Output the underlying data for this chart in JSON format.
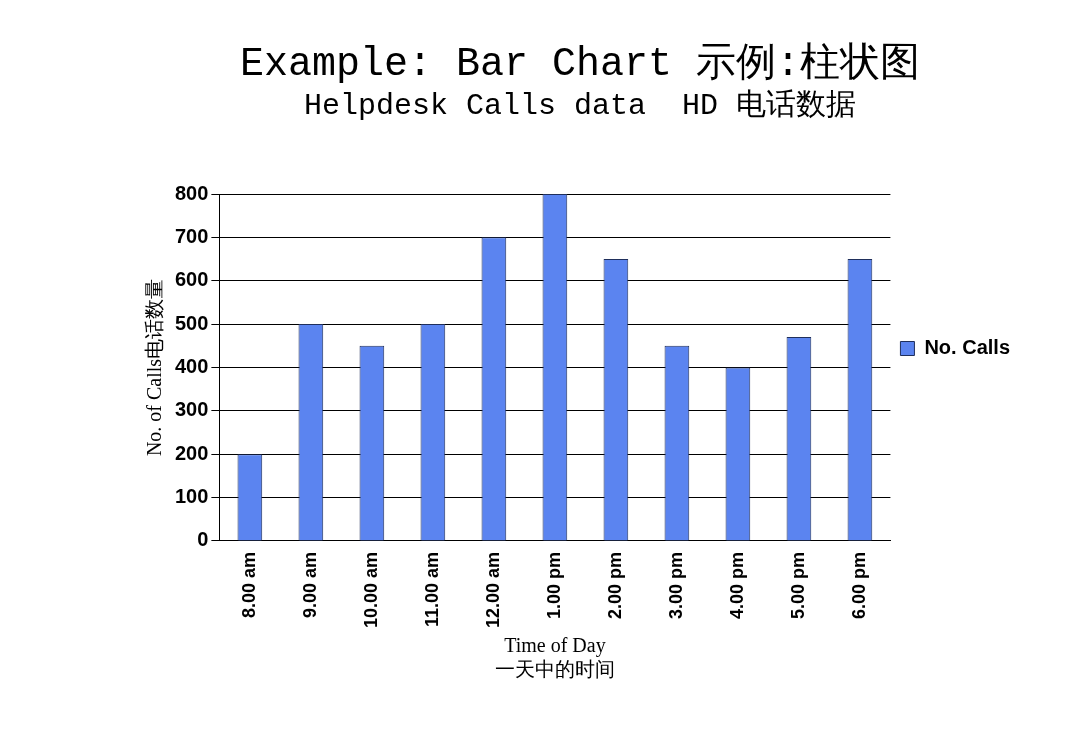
{
  "chart_data": {
    "type": "bar",
    "title": "Example: Bar Chart 示例:柱状图",
    "subtitle": "Helpdesk Calls data  HD 电话数据",
    "xlabel": "Time of Day\n一天中的时间",
    "ylabel": "No. of Calls电话数量",
    "categories": [
      "8.00 am",
      "9.00 am",
      "10.00 am",
      "11.00 am",
      "12.00 am",
      "1.00 pm",
      "2.00 pm",
      "3.00 pm",
      "4.00 pm",
      "5.00 pm",
      "6.00 pm"
    ],
    "series": [
      {
        "name": "No. Calls",
        "color": "#5b84f0",
        "values": [
          200,
          500,
          450,
          500,
          700,
          800,
          650,
          450,
          400,
          470,
          650
        ]
      }
    ],
    "ylim": [
      0,
      800
    ],
    "yticks": [
      0,
      100,
      200,
      300,
      400,
      500,
      600,
      700,
      800
    ],
    "grid": "y",
    "legend": "right"
  }
}
